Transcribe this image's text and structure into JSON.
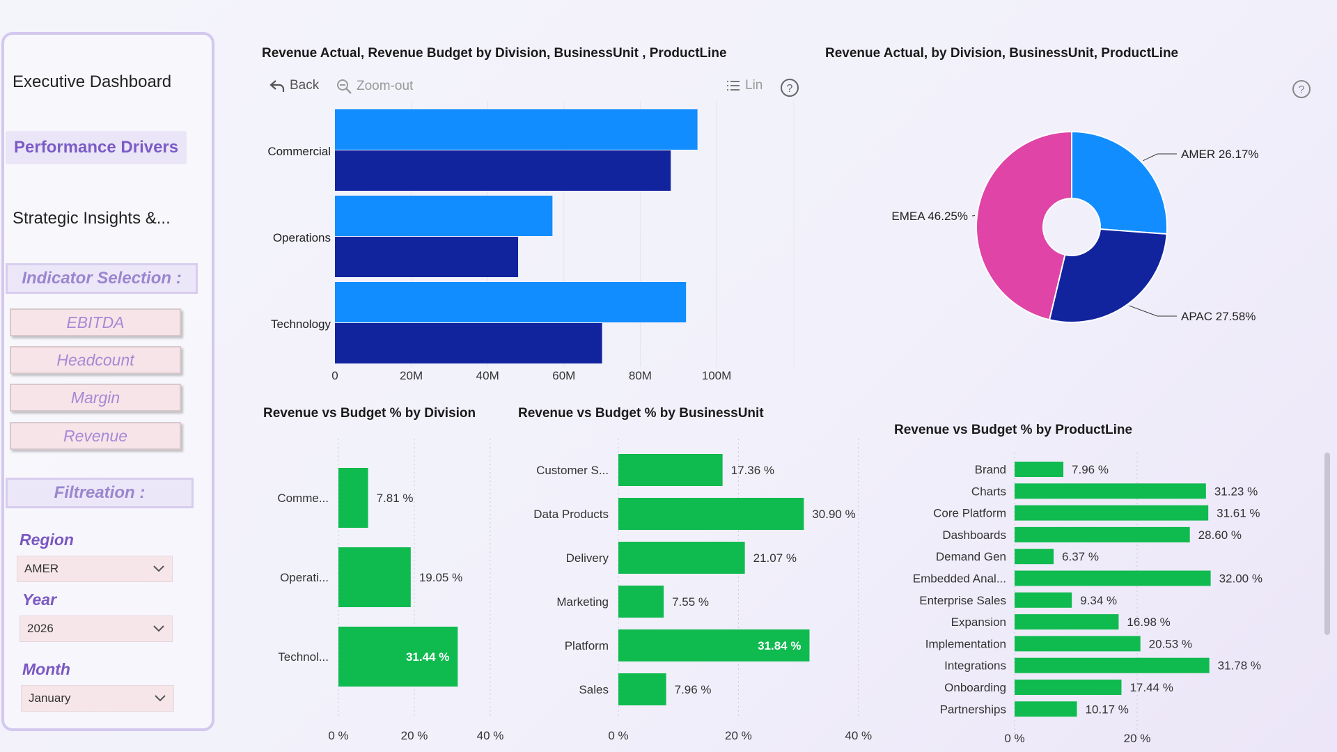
{
  "sidebar": {
    "nav": [
      "Executive Dashboard",
      "Performance Drivers",
      "Strategic Insights &..."
    ],
    "indicator_title": "Indicator Selection :",
    "indicators": [
      "EBITDA",
      "Headcount",
      "Margin",
      "Revenue"
    ],
    "filter_title": "Filtreation :",
    "filters": {
      "region": {
        "label": "Region",
        "value": "AMER"
      },
      "year": {
        "label": "Year",
        "value": "2026"
      },
      "month": {
        "label": "Month",
        "value": "January"
      }
    }
  },
  "toolbar": {
    "back": "Back",
    "zoom_out": "Zoom-out",
    "lin": "Lin"
  },
  "colors": {
    "actual": "#118dff",
    "budget": "#12239e",
    "green": "#0fba4f",
    "emea": "#e044a7"
  },
  "chart_data": [
    {
      "type": "bar",
      "orientation": "horizontal",
      "title": "Revenue Actual, Revenue Budget by Division, BusinessUnit , ProductLine",
      "categories": [
        "Commercial",
        "Operations",
        "Technology"
      ],
      "series": [
        {
          "name": "Revenue Actual",
          "values": [
            95,
            57,
            92
          ]
        },
        {
          "name": "Revenue Budget",
          "values": [
            88,
            48,
            70
          ]
        }
      ],
      "xlim": [
        0,
        120
      ],
      "ticks": [
        "0",
        "20M",
        "40M",
        "60M",
        "80M",
        "100M"
      ]
    },
    {
      "type": "pie",
      "title": "Revenue Actual, by Division, BusinessUnit, ProductLine",
      "slices": [
        {
          "label": "AMER",
          "value": 26.17,
          "text": "AMER 26.17%"
        },
        {
          "label": "APAC",
          "value": 27.58,
          "text": "APAC 27.58%"
        },
        {
          "label": "EMEA",
          "value": 46.25,
          "text": "EMEA 46.25%"
        }
      ]
    },
    {
      "type": "bar",
      "orientation": "horizontal",
      "title": "Revenue vs Budget % by Division",
      "categories": [
        "Comme...",
        "Operati...",
        "Technol..."
      ],
      "values": [
        7.81,
        19.05,
        31.44
      ],
      "labels": [
        "7.81 %",
        "19.05 %",
        "31.44 %"
      ],
      "xlim": [
        0,
        40
      ],
      "ticks": [
        "0 %",
        "20 %",
        "40 %"
      ]
    },
    {
      "type": "bar",
      "orientation": "horizontal",
      "title": "Revenue vs Budget % by BusinessUnit",
      "categories": [
        "Customer S...",
        "Data Products",
        "Delivery",
        "Marketing",
        "Platform",
        "Sales"
      ],
      "values": [
        17.36,
        30.9,
        21.07,
        7.55,
        31.84,
        7.96
      ],
      "labels": [
        "17.36 %",
        "30.90 %",
        "21.07 %",
        "7.55 %",
        "31.84 %",
        "7.96 %"
      ],
      "xlim": [
        0,
        40
      ],
      "ticks": [
        "0 %",
        "20 %",
        "40 %"
      ]
    },
    {
      "type": "bar",
      "orientation": "horizontal",
      "title": "Revenue vs Budget % by ProductLine",
      "categories": [
        "Brand",
        "Charts",
        "Core Platform",
        "Dashboards",
        "Demand Gen",
        "Embedded Anal...",
        "Enterprise Sales",
        "Expansion",
        "Implementation",
        "Integrations",
        "Onboarding",
        "Partnerships"
      ],
      "values": [
        7.96,
        31.23,
        31.61,
        28.6,
        6.37,
        32.0,
        9.34,
        16.98,
        20.53,
        31.78,
        17.44,
        10.17
      ],
      "labels": [
        "7.96 %",
        "31.23 %",
        "31.61 %",
        "28.60 %",
        "6.37 %",
        "32.00 %",
        "9.34 %",
        "16.98 %",
        "20.53 %",
        "31.78 %",
        "17.44 %",
        "10.17 %"
      ],
      "xlim": [
        0,
        40
      ],
      "ticks": [
        "0 %",
        "20 %"
      ]
    }
  ]
}
